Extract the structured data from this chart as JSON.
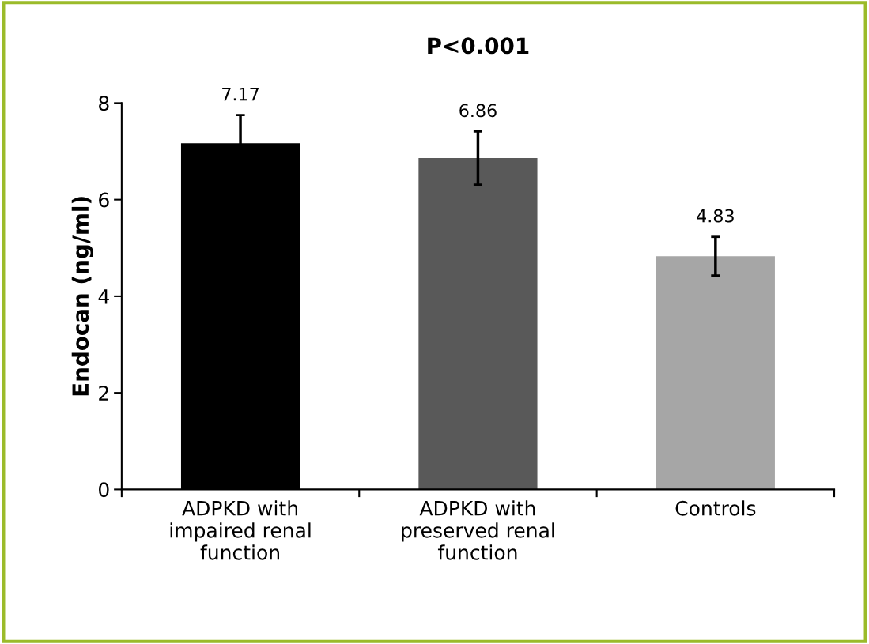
{
  "chart_data": {
    "type": "bar",
    "title": "P<0.001",
    "ylabel": "Endocan (ng/ml)",
    "categories": [
      "ADPKD with\nimpaired renal\nfunction",
      "ADPKD with\npreserved renal\nfunction",
      "Controls"
    ],
    "values": [
      7.17,
      6.86,
      4.83
    ],
    "colors": [
      "#000000",
      "#595959",
      "#a6a6a6"
    ],
    "errors": [
      0.58,
      0.55,
      0.4
    ],
    "ylim": [
      0,
      8
    ],
    "yticks": [
      0,
      2,
      4,
      6,
      8
    ],
    "grid": false,
    "data_labels": true
  }
}
